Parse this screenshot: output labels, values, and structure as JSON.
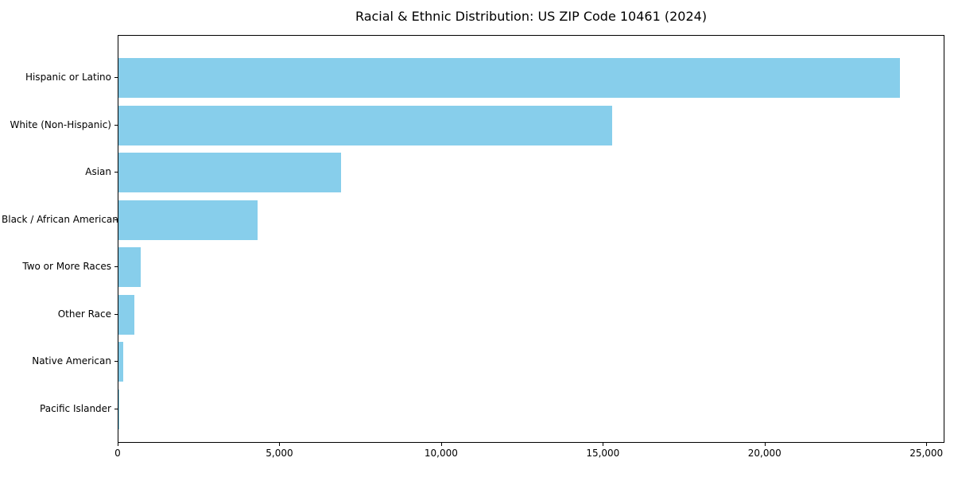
{
  "chart_data": {
    "type": "bar",
    "orientation": "horizontal",
    "title": "Racial & Ethnic Distribution: US ZIP Code 10461 (2024)",
    "categories": [
      "Hispanic or Latino",
      "White (Non-Hispanic)",
      "Asian",
      "Black / African American",
      "Two or More Races",
      "Other Race",
      "Native American",
      "Pacific Islander"
    ],
    "values": [
      24200,
      15300,
      6900,
      4300,
      700,
      500,
      140,
      25
    ],
    "xlabel": "",
    "ylabel": "",
    "xlim": [
      0,
      25560
    ],
    "xticks": [
      0,
      5000,
      10000,
      15000,
      20000,
      25000
    ],
    "xtick_labels": [
      "0",
      "5,000",
      "10,000",
      "15,000",
      "20,000",
      "25,000"
    ],
    "bar_color": "#87CEEB",
    "grid": false,
    "legend": "none"
  }
}
